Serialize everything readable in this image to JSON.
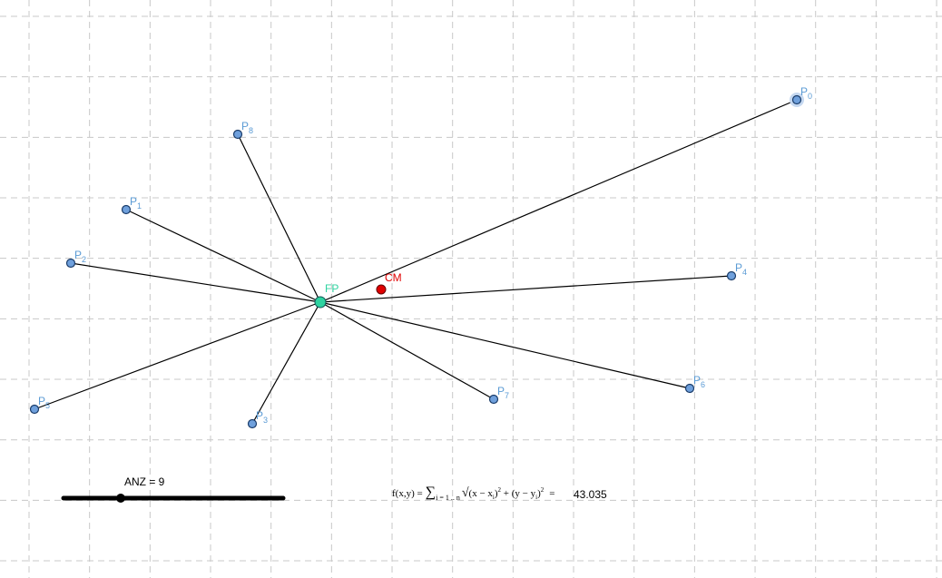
{
  "points": [
    {
      "name": "P",
      "index": "0"
    },
    {
      "name": "P",
      "index": "1"
    },
    {
      "name": "P",
      "index": "2"
    },
    {
      "name": "P",
      "index": "3"
    },
    {
      "name": "P",
      "index": "4"
    },
    {
      "name": "P",
      "index": "5"
    },
    {
      "name": "P",
      "index": "6"
    },
    {
      "name": "P",
      "index": "7"
    },
    {
      "name": "P",
      "index": "8"
    }
  ],
  "fermat_point": "FP",
  "center_of_mass": "CM",
  "slider": {
    "label": "ANZ = 9"
  },
  "formula": {
    "lhs": "f(x,y) =",
    "sum": "∑",
    "range": "i = 1 .. n",
    "term1": "(x − x",
    "sub1": "i",
    "close1": ")",
    "pow1": "2",
    "term2": " + (y − y",
    "sub2": "i",
    "close2": ")",
    "pow2": "2",
    "eq": "=",
    "result": "43.035"
  }
}
